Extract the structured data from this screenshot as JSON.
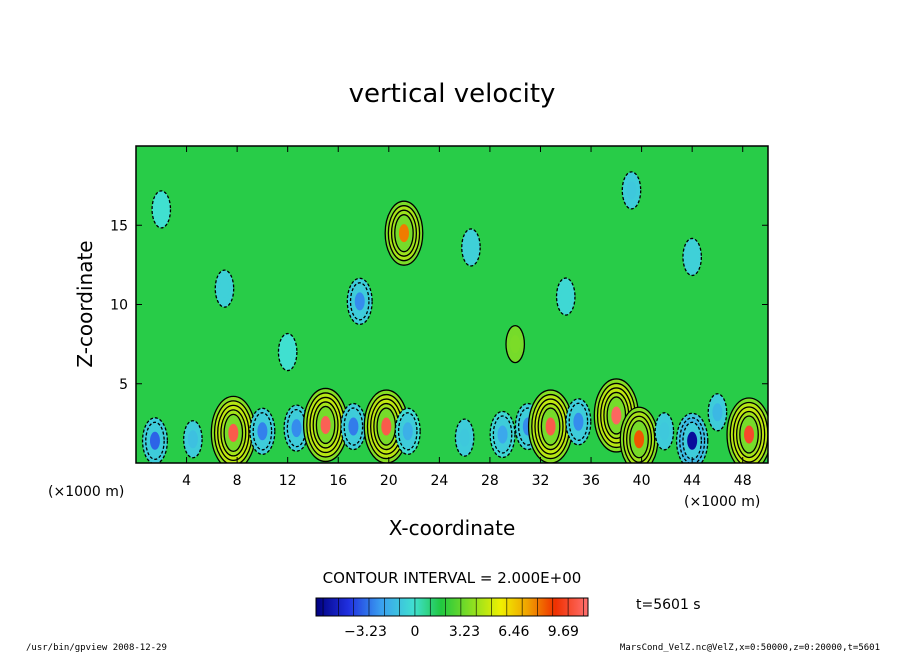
{
  "chart_data": {
    "type": "heatmap",
    "title": "vertical velocity",
    "xlabel": "X-coordinate",
    "ylabel": "Z-coordinate",
    "x_unit_left": "(×1000 m)",
    "x_unit_right": "(×1000 m)",
    "xlim": [
      0,
      50
    ],
    "ylim": [
      0,
      20
    ],
    "xticks": [
      "4",
      "8",
      "12",
      "16",
      "20",
      "24",
      "28",
      "32",
      "36",
      "40",
      "44",
      "48"
    ],
    "yticks": [
      "5",
      "10",
      "15"
    ],
    "contour_interval_text": "CONTOUR INTERVAL = 2.000E+00",
    "time_text": "t=5601 s",
    "colorbar": {
      "labels": [
        "−3.23",
        "0",
        "3.23",
        "6.46",
        "9.69"
      ],
      "values": [
        -3.23,
        0,
        3.23,
        6.46,
        9.69
      ],
      "range": [
        -6.46,
        11.3
      ]
    },
    "features": [
      {
        "x": 1.5,
        "z": 1.4,
        "w": -3.8
      },
      {
        "x": 4.5,
        "z": 1.5,
        "w": -1.8
      },
      {
        "x": 7.7,
        "z": 1.9,
        "w": 9.0
      },
      {
        "x": 10.0,
        "z": 2.0,
        "w": -3.2
      },
      {
        "x": 12.7,
        "z": 2.2,
        "w": -3.0
      },
      {
        "x": 15.0,
        "z": 2.4,
        "w": 9.2
      },
      {
        "x": 17.2,
        "z": 2.3,
        "w": -3.3
      },
      {
        "x": 19.8,
        "z": 2.3,
        "w": 9.0
      },
      {
        "x": 21.5,
        "z": 2.0,
        "w": -2.2
      },
      {
        "x": 26.0,
        "z": 1.6,
        "w": -1.6
      },
      {
        "x": 29.0,
        "z": 1.8,
        "w": -2.4
      },
      {
        "x": 31.0,
        "z": 2.3,
        "w": -3.0
      },
      {
        "x": 32.8,
        "z": 2.3,
        "w": 9.0
      },
      {
        "x": 35.0,
        "z": 2.6,
        "w": -3.0
      },
      {
        "x": 38.0,
        "z": 3.0,
        "w": 9.4
      },
      {
        "x": 39.8,
        "z": 1.5,
        "w": 7.0
      },
      {
        "x": 41.8,
        "z": 2.0,
        "w": -1.6
      },
      {
        "x": 44.0,
        "z": 1.4,
        "w": -6.0
      },
      {
        "x": 46.0,
        "z": 3.2,
        "w": -2.0
      },
      {
        "x": 48.5,
        "z": 1.8,
        "w": 8.4
      },
      {
        "x": 17.7,
        "z": 10.2,
        "w": -3.0
      },
      {
        "x": 21.2,
        "z": 14.5,
        "w": 6.4
      },
      {
        "x": 26.5,
        "z": 13.6,
        "w": -1.4
      },
      {
        "x": 7.0,
        "z": 11.0,
        "w": -1.4
      },
      {
        "x": 39.2,
        "z": 17.2,
        "w": -1.6
      },
      {
        "x": 34.0,
        "z": 10.5,
        "w": -1.2
      },
      {
        "x": 44.0,
        "z": 13.0,
        "w": -1.4
      },
      {
        "x": 2.0,
        "z": 16.0,
        "w": -1.0
      },
      {
        "x": 12.0,
        "z": 7.0,
        "w": -1.0
      },
      {
        "x": 30.0,
        "z": 7.5,
        "w": 1.6
      }
    ]
  },
  "footer": {
    "left": "/usr/bin/gpview   2008-12-29",
    "right": "MarsCond_VelZ.nc@VelZ,x=0:50000,z=0:20000,t=5601"
  }
}
